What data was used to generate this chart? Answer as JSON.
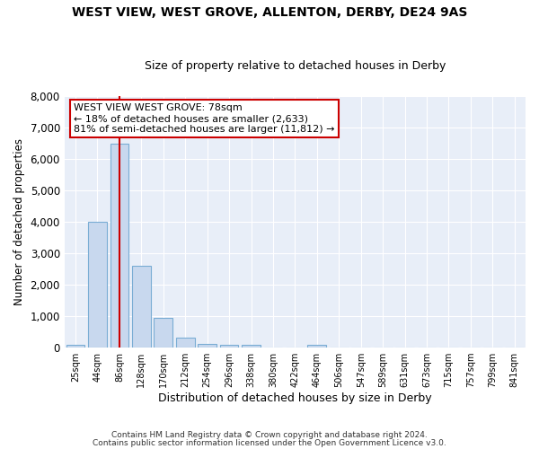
{
  "title": "WEST VIEW, WEST GROVE, ALLENTON, DERBY, DE24 9AS",
  "subtitle": "Size of property relative to detached houses in Derby",
  "xlabel": "Distribution of detached houses by size in Derby",
  "ylabel": "Number of detached properties",
  "bar_color": "#c8d8ee",
  "bar_edge_color": "#7aadd4",
  "fig_bg_color": "#ffffff",
  "ax_bg_color": "#e8eef8",
  "grid_color": "#ffffff",
  "red_line_x": 2,
  "annotation_text": "WEST VIEW WEST GROVE: 78sqm\n← 18% of detached houses are smaller (2,633)\n81% of semi-detached houses are larger (11,812) →",
  "annotation_box_color": "#ffffff",
  "annotation_box_edge_color": "#cc0000",
  "footer_line1": "Contains HM Land Registry data © Crown copyright and database right 2024.",
  "footer_line2": "Contains public sector information licensed under the Open Government Licence v3.0.",
  "bin_labels": [
    "25sqm",
    "44sqm",
    "86sqm",
    "128sqm",
    "170sqm",
    "212sqm",
    "254sqm",
    "296sqm",
    "338sqm",
    "380sqm",
    "422sqm",
    "464sqm",
    "506sqm",
    "547sqm",
    "589sqm",
    "631sqm",
    "673sqm",
    "715sqm",
    "757sqm",
    "799sqm",
    "841sqm"
  ],
  "bar_heights": [
    80,
    4000,
    6500,
    2600,
    950,
    320,
    130,
    100,
    100,
    0,
    0,
    90,
    0,
    0,
    0,
    0,
    0,
    0,
    0,
    0,
    0
  ],
  "ylim": [
    0,
    8000
  ],
  "yticks": [
    0,
    1000,
    2000,
    3000,
    4000,
    5000,
    6000,
    7000,
    8000
  ]
}
